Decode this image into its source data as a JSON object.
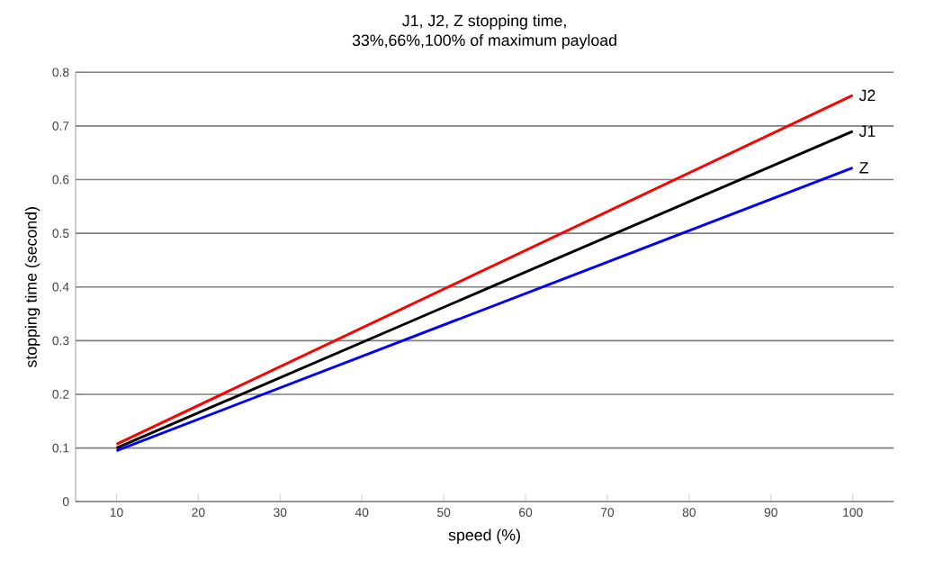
{
  "chart_data": {
    "type": "line",
    "title": "J1, J2, Z stopping time,",
    "subtitle": "33%,66%,100% of maximum payload",
    "xlabel": "speed (%)",
    "ylabel": "stopping time (second)",
    "x": [
      10,
      100
    ],
    "series": [
      {
        "name": "J2",
        "color": "#ff0000",
        "values": [
          0.107,
          0.757
        ]
      },
      {
        "name": "J1",
        "color": "#000000",
        "values": [
          0.1,
          0.69
        ]
      },
      {
        "name": "Z",
        "color": "#0000ff",
        "values": [
          0.095,
          0.622
        ]
      }
    ],
    "xlim": [
      5,
      105
    ],
    "xticks": [
      10,
      20,
      30,
      40,
      50,
      60,
      70,
      80,
      90,
      100
    ],
    "ylim": [
      0,
      0.8
    ],
    "yticks": [
      0,
      0.1,
      0.2,
      0.3,
      0.4,
      0.5,
      0.6,
      0.7,
      0.8
    ],
    "grid": "y",
    "legend": false,
    "marker": "none",
    "line_style": "solid"
  }
}
